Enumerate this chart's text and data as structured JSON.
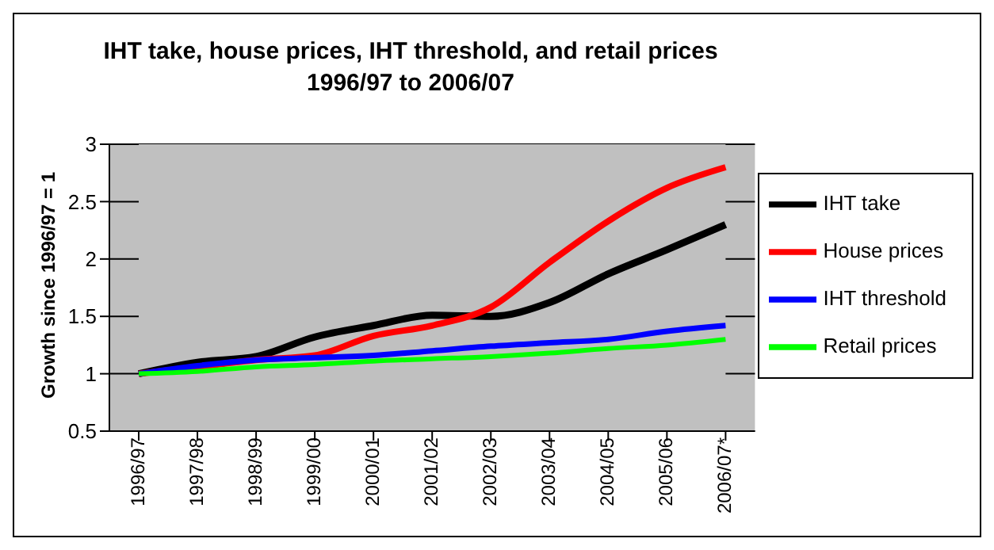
{
  "chart_data": {
    "type": "line",
    "title": "IHT take, house prices, IHT threshold, and retail prices\n1996/97 to 2006/07",
    "ylabel": "Growth since 1996/97 = 1",
    "categories": [
      "1996/97",
      "1997/98",
      "1998/99",
      "1999/00",
      "2000/01",
      "2001/02",
      "2002/03",
      "2003/04",
      "2004/05",
      "2005/06",
      "2006/07*"
    ],
    "series": [
      {
        "name": "IHT take",
        "color": "#000000",
        "values": [
          1.0,
          1.1,
          1.15,
          1.32,
          1.42,
          1.51,
          1.5,
          1.62,
          1.87,
          2.08,
          2.3
        ]
      },
      {
        "name": "House prices",
        "color": "#ff0000",
        "values": [
          1.0,
          1.06,
          1.12,
          1.16,
          1.33,
          1.42,
          1.58,
          1.97,
          2.33,
          2.62,
          2.8
        ]
      },
      {
        "name": "IHT threshold",
        "color": "#0000ff",
        "values": [
          1.0,
          1.07,
          1.12,
          1.14,
          1.16,
          1.2,
          1.24,
          1.27,
          1.3,
          1.37,
          1.42
        ]
      },
      {
        "name": "Retail prices",
        "color": "#00ff00",
        "values": [
          1.0,
          1.02,
          1.06,
          1.08,
          1.11,
          1.13,
          1.15,
          1.18,
          1.22,
          1.25,
          1.3
        ]
      }
    ],
    "ylim": [
      0.5,
      3
    ],
    "yticks": [
      0.5,
      1,
      1.5,
      2,
      2.5,
      3
    ],
    "grid": "y",
    "legend": "right",
    "marker": "none",
    "line_style": "solid"
  }
}
